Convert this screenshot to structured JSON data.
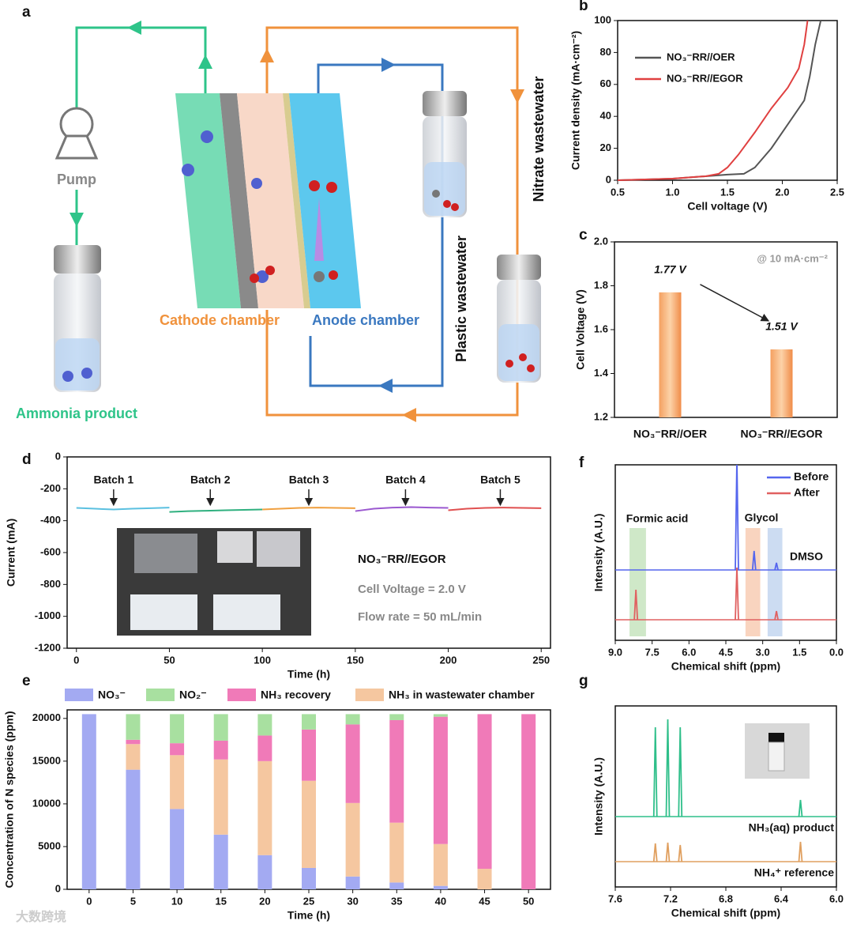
{
  "diagram": {
    "panel": "a",
    "pump": "Pump",
    "product": "Ammonia product",
    "cathode": "Cathode chamber",
    "anode": "Anode chamber",
    "plastic": "Plastic wastewater",
    "nitrate": "Nitrate wastewater"
  },
  "chart_data": [
    {
      "panel": "b",
      "type": "line",
      "xlabel": "Cell voltage (V)",
      "ylabel": "Current density (mA·cm⁻²)",
      "xlim": [
        0.5,
        2.5
      ],
      "xticks": [
        0.5,
        {
          "value": 1,
          "label": "1.0"
        },
        1.5,
        {
          "value": 2,
          "label": "2.0"
        },
        2.5
      ],
      "ylim": [
        0,
        100
      ],
      "yticks": [
        0,
        20,
        40,
        60,
        80,
        100
      ],
      "legend": "upper left",
      "series": [
        {
          "name": "NO₃⁻RR//OER",
          "color": "#555555",
          "x": [
            0.5,
            1.0,
            1.3,
            1.5,
            1.65,
            1.75,
            1.9,
            2.05,
            2.2,
            2.25,
            2.3,
            2.35
          ],
          "values": [
            0,
            1,
            2.5,
            3.5,
            4,
            8,
            20,
            35,
            50,
            65,
            85,
            100
          ]
        },
        {
          "name": "NO₃⁻RR//EGOR",
          "color": "#e04040",
          "x": [
            0.5,
            1.0,
            1.3,
            1.42,
            1.5,
            1.6,
            1.75,
            1.9,
            2.05,
            2.15,
            2.2,
            2.23
          ],
          "values": [
            0,
            1,
            2.5,
            4,
            8,
            16,
            30,
            45,
            58,
            70,
            85,
            100
          ]
        }
      ]
    },
    {
      "panel": "c",
      "type": "bar",
      "ylabel": "Cell Voltage (V)",
      "annotation": "@ 10 mA·cm⁻²",
      "categories": [
        "NO₃⁻RR//OER",
        "NO₃⁻RR//EGOR"
      ],
      "values": [
        1.77,
        1.51
      ],
      "value_labels": [
        "1.77 V",
        "1.51 V"
      ],
      "color": "#f08c48",
      "ylim": [
        1.2,
        2.0
      ],
      "yticks": [
        1.2,
        1.4,
        1.6,
        1.8,
        {
          "value": 2,
          "label": "2.0"
        }
      ]
    },
    {
      "panel": "d",
      "type": "line",
      "xlabel": "Time (h)",
      "ylabel": "Current (mA)",
      "xlim": [
        -5,
        255
      ],
      "xticks": [
        0,
        50,
        100,
        150,
        200,
        250
      ],
      "ylim": [
        -1200,
        0
      ],
      "yticks": [
        0,
        -200,
        -400,
        -600,
        -800,
        -1000,
        -1200
      ],
      "annotations": [
        {
          "label": "Batch 1",
          "x": 20
        },
        {
          "label": "Batch 2",
          "x": 72
        },
        {
          "label": "Batch 3",
          "x": 125
        },
        {
          "label": "Batch 4",
          "x": 177
        },
        {
          "label": "Batch 5",
          "x": 228
        }
      ],
      "notes": [
        "NO₃⁻RR//EGOR",
        "Cell Voltage = 2.0 V",
        "Flow rate = 50 mL/min"
      ],
      "series": [
        {
          "color": "#5bc0e0",
          "x": [
            0,
            10,
            20,
            30,
            40,
            50
          ],
          "values": [
            -320,
            -325,
            -330,
            -325,
            -322,
            -318
          ]
        },
        {
          "color": "#2fb07f",
          "x": [
            50,
            60,
            70,
            80,
            90,
            100
          ],
          "values": [
            -345,
            -340,
            -338,
            -335,
            -332,
            -330
          ]
        },
        {
          "color": "#f0a040",
          "x": [
            100,
            110,
            120,
            130,
            140,
            150
          ],
          "values": [
            -330,
            -325,
            -320,
            -318,
            -320,
            -322
          ]
        },
        {
          "color": "#9b59d0",
          "x": [
            150,
            160,
            170,
            180,
            190,
            200
          ],
          "values": [
            -340,
            -325,
            -318,
            -315,
            -318,
            -320
          ]
        },
        {
          "color": "#e05050",
          "x": [
            200,
            210,
            220,
            230,
            240,
            250
          ],
          "values": [
            -335,
            -325,
            -320,
            -318,
            -320,
            -322
          ]
        }
      ]
    },
    {
      "panel": "e",
      "type": "stacked_bar",
      "xlabel": "Time (h)",
      "ylabel": "Concentration of N species (ppm)",
      "categories": [
        "0",
        "5",
        "10",
        "15",
        "20",
        "25",
        "30",
        "35",
        "40",
        "45",
        "50"
      ],
      "ylim": [
        0,
        21000
      ],
      "yticks": [
        0,
        5000,
        10000,
        15000,
        20000
      ],
      "series": [
        {
          "name": "NO₃⁻",
          "color": "#a3aaf2",
          "values": [
            20500,
            14000,
            9400,
            6400,
            4000,
            2500,
            1500,
            800,
            400,
            0,
            0
          ]
        },
        {
          "name": "NO₂⁻",
          "color": "#a8e0a0",
          "values": [
            0,
            3000,
            3400,
            3100,
            2500,
            1800,
            1200,
            700,
            300,
            0,
            0
          ]
        },
        {
          "name": "NH₃ recovery",
          "color": "#f07ab8",
          "values": [
            0,
            500,
            1400,
            2200,
            3000,
            6000,
            9200,
            12000,
            14900,
            18100,
            20500
          ]
        },
        {
          "name": "NH₃ in wastewater chamber",
          "color": "#f5c7a0",
          "values": [
            0,
            3000,
            6300,
            8800,
            11000,
            10200,
            8600,
            7000,
            4900,
            2400,
            0
          ]
        }
      ]
    },
    {
      "panel": "f",
      "type": "spectrum",
      "xlabel": "Chemical shift (ppm)",
      "ylabel": "Intensity (A.U.)",
      "xlim": [
        9,
        0
      ],
      "xticks": [
        {
          "value": 9,
          "label": "9.0"
        },
        7.5,
        {
          "value": 6,
          "label": "6.0"
        },
        4.5,
        {
          "value": 3,
          "label": "3.0"
        },
        1.5,
        {
          "value": 0,
          "label": "0.0"
        }
      ],
      "legend": "upper right",
      "regions": [
        {
          "label": "Formic acid",
          "range": [
            8.42,
            7.75
          ],
          "color": "#cfe8c8"
        },
        {
          "label": "Glycol",
          "range": [
            3.7,
            3.1
          ],
          "color": "#f9d4bf"
        },
        {
          "label": "DMSO",
          "range": [
            2.8,
            2.2
          ],
          "color": "#ccdcf2"
        }
      ],
      "series": [
        {
          "name": "Before",
          "color": "#5566ee",
          "x": [
            4.05,
            3.35,
            2.44
          ],
          "values": [
            140,
            24,
            9
          ]
        },
        {
          "name": "After",
          "color": "#e06060",
          "x": [
            8.16,
            4.05,
            2.44
          ],
          "values": [
            38,
            66,
            11
          ]
        }
      ]
    },
    {
      "panel": "g",
      "type": "spectrum",
      "xlabel": "Chemical shift (ppm)",
      "ylabel": "Intensity (A.U.)",
      "xlim": [
        7.6,
        6.0
      ],
      "xticks": [
        7.6,
        7.2,
        6.8,
        6.4,
        {
          "value": 6,
          "label": "6.0"
        }
      ],
      "series": [
        {
          "name": "NH₃(aq) product",
          "color": "#2fbf8a",
          "x": [
            7.31,
            7.22,
            7.13,
            6.26
          ],
          "values": [
            113,
            123,
            113,
            21
          ]
        },
        {
          "name": "NH₄⁺ reference",
          "color": "#e0a060",
          "x": [
            7.31,
            7.22,
            7.13,
            6.26
          ],
          "values": [
            23,
            24,
            21,
            25
          ]
        }
      ]
    }
  ],
  "watermark": "大数跨境"
}
